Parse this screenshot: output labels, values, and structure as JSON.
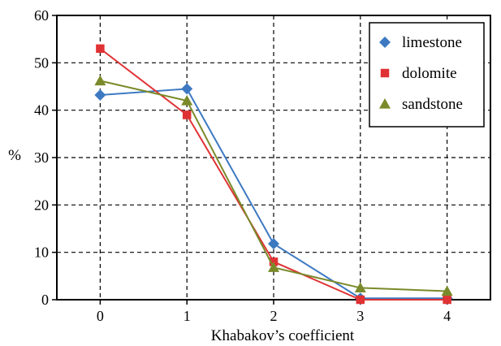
{
  "chart_data": {
    "type": "line",
    "xlabel": "Khabakov’s coefficient",
    "ylabel": "%",
    "x": [
      0,
      1,
      2,
      3,
      4
    ],
    "xlim": [
      -0.5,
      4.5
    ],
    "ylim": [
      0,
      60
    ],
    "xticks": [
      "0",
      "1",
      "2",
      "3",
      "4"
    ],
    "yticks": [
      "0",
      "10",
      "20",
      "30",
      "40",
      "50",
      "60"
    ],
    "grid": true,
    "legend_position": "top-right",
    "series": [
      {
        "name": "limestone",
        "values": [
          43.2,
          44.5,
          11.8,
          0.3,
          0.3
        ],
        "color": "#3d79c1",
        "marker": "diamond"
      },
      {
        "name": "dolomite",
        "values": [
          53.0,
          39.0,
          8.0,
          0.0,
          0.0
        ],
        "color": "#e03234",
        "marker": "square"
      },
      {
        "name": "sandstone",
        "values": [
          46.2,
          42.0,
          6.8,
          2.5,
          1.8
        ],
        "color": "#7a8a2a",
        "marker": "triangle"
      }
    ]
  }
}
